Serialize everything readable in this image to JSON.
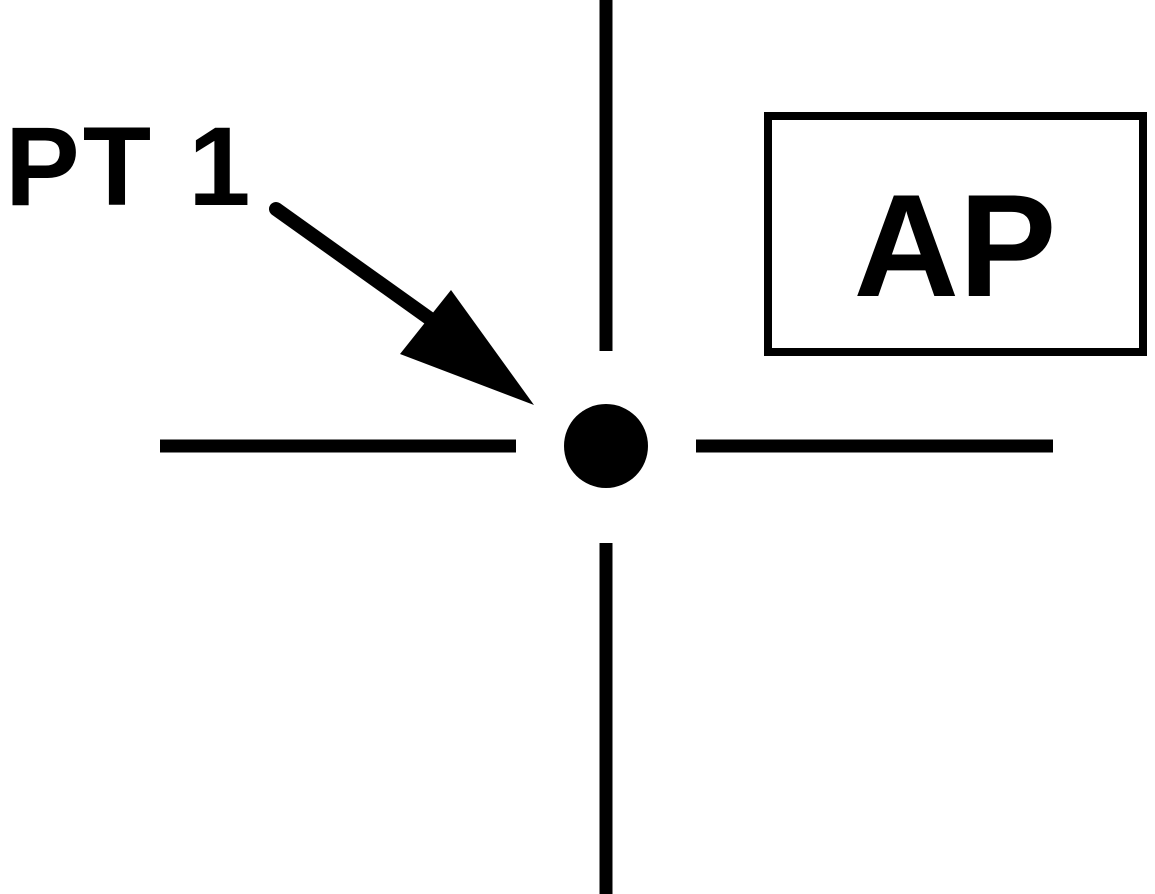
{
  "point_label": "PT 1",
  "box_label": "AP",
  "colors": {
    "ink": "#000000",
    "background": "#ffffff"
  },
  "icons": {
    "pointer": "arrow-icon",
    "center": "dot-icon"
  }
}
